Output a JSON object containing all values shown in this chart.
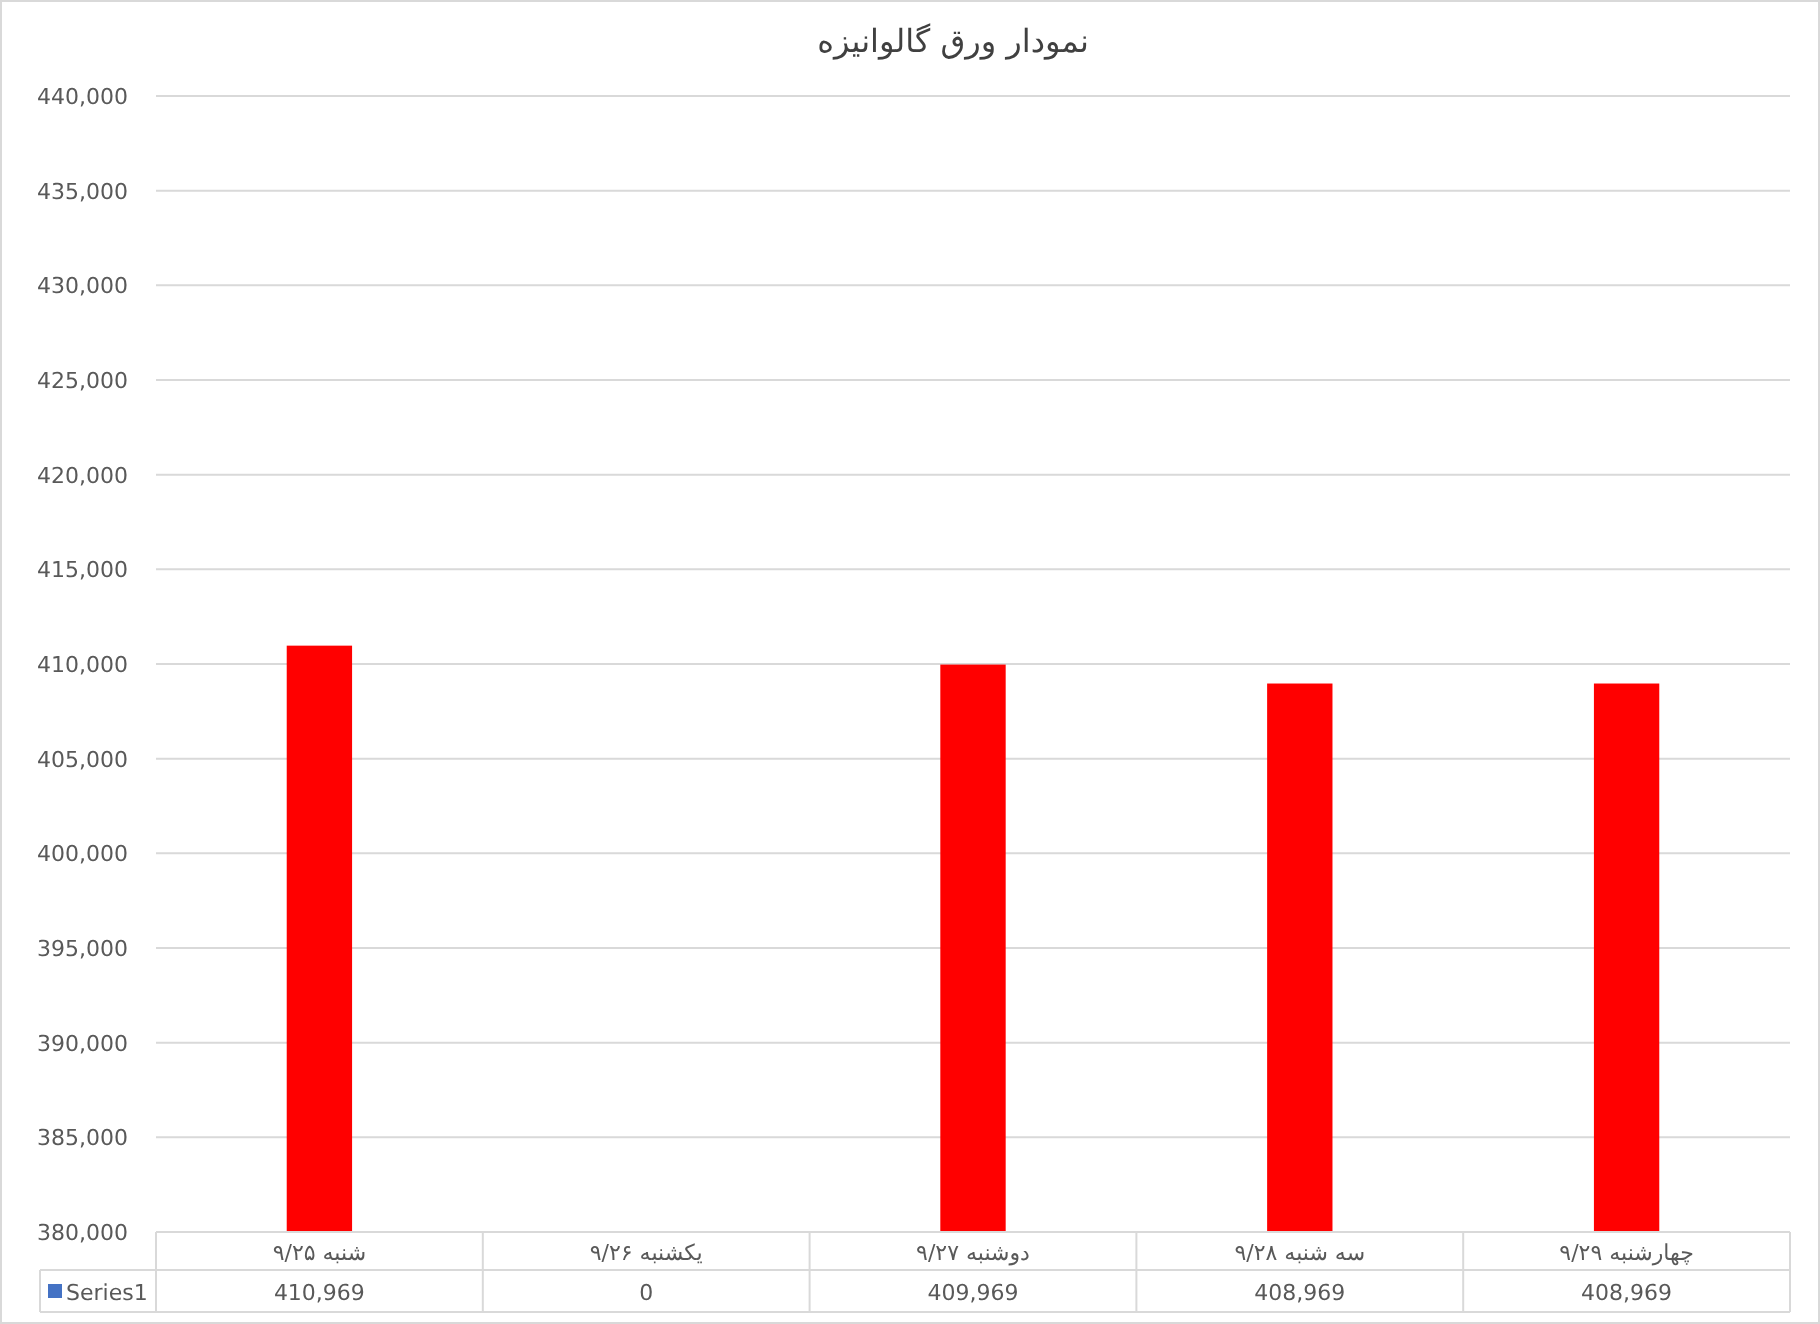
{
  "chart_data": {
    "type": "bar",
    "title": "نمودار ورق گالوانیزه",
    "categories": [
      "شنبه ۹/۲۵",
      "یکشنبه ۹/۲۶",
      "دوشنبه ۹/۲۷",
      "سه شنبه ۹/۲۸",
      "چهارشنبه ۹/۲۹"
    ],
    "series": [
      {
        "name": "Series1",
        "color": "#4472c4",
        "colors": [
          "#ff0000",
          null,
          "#ff0000",
          "#ff0000",
          "#ff0000"
        ],
        "values": [
          410969,
          null,
          409969,
          408969,
          408969
        ],
        "value_labels": [
          "410,969",
          "0",
          "409,969",
          "408,969",
          "408,969"
        ]
      }
    ],
    "ylim": [
      380000,
      440000
    ],
    "yticks": [
      {
        "value": 380000,
        "label": "380,000"
      },
      {
        "value": 385000,
        "label": "385,000"
      },
      {
        "value": 390000,
        "label": "390,000"
      },
      {
        "value": 395000,
        "label": "395,000"
      },
      {
        "value": 400000,
        "label": "400,000"
      },
      {
        "value": 405000,
        "label": "405,000"
      },
      {
        "value": 410000,
        "label": "410,000"
      },
      {
        "value": 415000,
        "label": "415,000"
      },
      {
        "value": 420000,
        "label": "420,000"
      },
      {
        "value": 425000,
        "label": "425,000"
      },
      {
        "value": 430000,
        "label": "430,000"
      },
      {
        "value": 435000,
        "label": "435,000"
      },
      {
        "value": 440000,
        "label": "440,000"
      }
    ],
    "grid": "y",
    "legend": "bottom"
  }
}
